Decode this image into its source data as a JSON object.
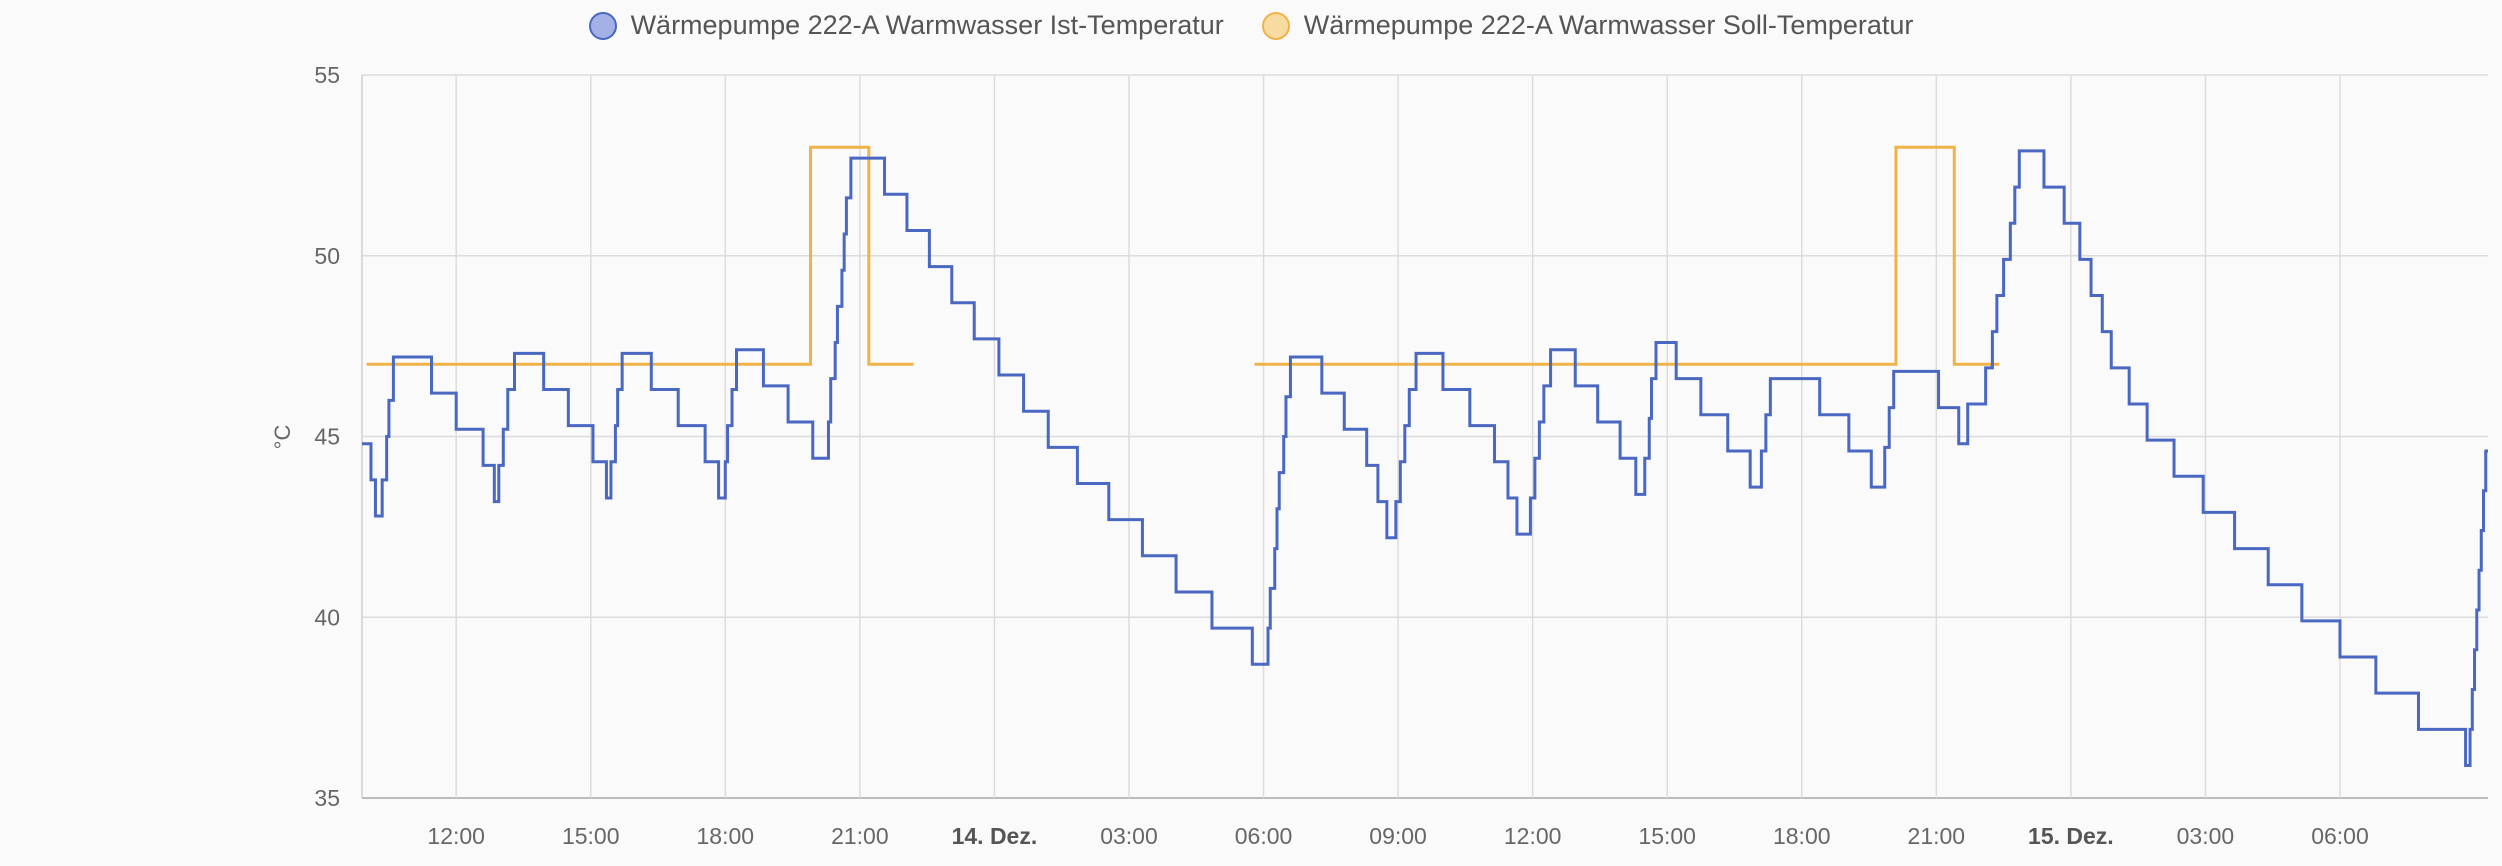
{
  "chart_data": {
    "type": "line",
    "step": true,
    "ylabel": "°C",
    "ylim": [
      35,
      55
    ],
    "yticks": [
      35,
      40,
      45,
      50,
      55
    ],
    "xlim": [
      9.9,
      57.3
    ],
    "xticks": [
      {
        "x": 12,
        "label": "12:00",
        "bold": false
      },
      {
        "x": 15,
        "label": "15:00",
        "bold": false
      },
      {
        "x": 18,
        "label": "18:00",
        "bold": false
      },
      {
        "x": 21,
        "label": "21:00",
        "bold": false
      },
      {
        "x": 24,
        "label": "14. Dez.",
        "bold": true
      },
      {
        "x": 27,
        "label": "03:00",
        "bold": false
      },
      {
        "x": 30,
        "label": "06:00",
        "bold": false
      },
      {
        "x": 33,
        "label": "09:00",
        "bold": false
      },
      {
        "x": 36,
        "label": "12:00",
        "bold": false
      },
      {
        "x": 39,
        "label": "15:00",
        "bold": false
      },
      {
        "x": 42,
        "label": "18:00",
        "bold": false
      },
      {
        "x": 45,
        "label": "21:00",
        "bold": false
      },
      {
        "x": 48,
        "label": "15. Dez.",
        "bold": true
      },
      {
        "x": 51,
        "label": "03:00",
        "bold": false
      },
      {
        "x": 54,
        "label": "06:00",
        "bold": false
      }
    ],
    "grid": true,
    "legend_position": "top-center",
    "series": [
      {
        "name": "Wärmepumpe 222-A Warmwasser Ist-Temperatur",
        "color": "#4a67c2",
        "fill": "#a3b1e6",
        "points": [
          [
            9.9,
            44.8
          ],
          [
            10.1,
            43.8
          ],
          [
            10.2,
            42.8
          ],
          [
            10.35,
            43.8
          ],
          [
            10.45,
            45
          ],
          [
            10.5,
            46
          ],
          [
            10.6,
            47.2
          ],
          [
            11.45,
            46.2
          ],
          [
            12,
            45.2
          ],
          [
            12.6,
            44.2
          ],
          [
            12.85,
            43.2
          ],
          [
            12.95,
            44.2
          ],
          [
            13.05,
            45.2
          ],
          [
            13.15,
            46.3
          ],
          [
            13.3,
            47.3
          ],
          [
            13.95,
            46.3
          ],
          [
            14.5,
            45.3
          ],
          [
            15.05,
            44.3
          ],
          [
            15.35,
            43.3
          ],
          [
            15.45,
            44.3
          ],
          [
            15.55,
            45.3
          ],
          [
            15.6,
            46.3
          ],
          [
            15.7,
            47.3
          ],
          [
            16.35,
            46.3
          ],
          [
            16.95,
            45.3
          ],
          [
            17.55,
            44.3
          ],
          [
            17.85,
            43.3
          ],
          [
            18,
            44.3
          ],
          [
            18.05,
            45.3
          ],
          [
            18.15,
            46.3
          ],
          [
            18.25,
            47.4
          ],
          [
            18.85,
            46.4
          ],
          [
            19.4,
            45.4
          ],
          [
            19.95,
            44.4
          ],
          [
            20.3,
            45.4
          ],
          [
            20.35,
            46.6
          ],
          [
            20.45,
            47.6
          ],
          [
            20.5,
            48.6
          ],
          [
            20.6,
            49.6
          ],
          [
            20.65,
            50.6
          ],
          [
            20.7,
            51.6
          ],
          [
            20.8,
            52.7
          ],
          [
            21.55,
            51.7
          ],
          [
            22.05,
            50.7
          ],
          [
            22.55,
            49.7
          ],
          [
            23.05,
            48.7
          ],
          [
            23.55,
            47.7
          ],
          [
            24.1,
            46.7
          ],
          [
            24.65,
            45.7
          ],
          [
            25.2,
            44.7
          ],
          [
            25.85,
            43.7
          ],
          [
            26.55,
            42.7
          ],
          [
            27.3,
            41.7
          ],
          [
            28.05,
            40.7
          ],
          [
            28.85,
            39.7
          ],
          [
            29.75,
            38.7
          ],
          [
            30.1,
            39.7
          ],
          [
            30.15,
            40.8
          ],
          [
            30.25,
            41.9
          ],
          [
            30.3,
            43
          ],
          [
            30.35,
            44
          ],
          [
            30.45,
            45
          ],
          [
            30.5,
            46.1
          ],
          [
            30.6,
            47.2
          ],
          [
            31.3,
            46.2
          ],
          [
            31.8,
            45.2
          ],
          [
            32.3,
            44.2
          ],
          [
            32.55,
            43.2
          ],
          [
            32.75,
            42.2
          ],
          [
            32.95,
            43.2
          ],
          [
            33.05,
            44.3
          ],
          [
            33.15,
            45.3
          ],
          [
            33.25,
            46.3
          ],
          [
            33.4,
            47.3
          ],
          [
            34,
            46.3
          ],
          [
            34.6,
            45.3
          ],
          [
            35.15,
            44.3
          ],
          [
            35.45,
            43.3
          ],
          [
            35.65,
            42.3
          ],
          [
            35.95,
            43.3
          ],
          [
            36.05,
            44.4
          ],
          [
            36.15,
            45.4
          ],
          [
            36.25,
            46.4
          ],
          [
            36.4,
            47.4
          ],
          [
            36.95,
            46.4
          ],
          [
            37.45,
            45.4
          ],
          [
            37.95,
            44.4
          ],
          [
            38.3,
            43.4
          ],
          [
            38.5,
            44.4
          ],
          [
            38.6,
            45.5
          ],
          [
            38.65,
            46.6
          ],
          [
            38.75,
            47.6
          ],
          [
            39.2,
            46.6
          ],
          [
            39.75,
            45.6
          ],
          [
            40.35,
            44.6
          ],
          [
            40.85,
            43.6
          ],
          [
            41.1,
            44.6
          ],
          [
            41.2,
            45.6
          ],
          [
            41.3,
            46.6
          ],
          [
            42.4,
            45.6
          ],
          [
            43.05,
            44.6
          ],
          [
            43.55,
            43.6
          ],
          [
            43.85,
            44.7
          ],
          [
            43.95,
            45.8
          ],
          [
            44.05,
            46.8
          ],
          [
            45.05,
            45.8
          ],
          [
            45.5,
            44.8
          ],
          [
            45.7,
            45.9
          ],
          [
            46.1,
            46.9
          ],
          [
            46.25,
            47.9
          ],
          [
            46.35,
            48.9
          ],
          [
            46.5,
            49.9
          ],
          [
            46.65,
            50.9
          ],
          [
            46.75,
            51.9
          ],
          [
            46.85,
            52.9
          ],
          [
            47.4,
            51.9
          ],
          [
            47.85,
            50.9
          ],
          [
            48.2,
            49.9
          ],
          [
            48.45,
            48.9
          ],
          [
            48.7,
            47.9
          ],
          [
            48.9,
            46.9
          ],
          [
            49.3,
            45.9
          ],
          [
            49.7,
            44.9
          ],
          [
            50.3,
            43.9
          ],
          [
            50.95,
            42.9
          ],
          [
            51.65,
            41.9
          ],
          [
            52.4,
            40.9
          ],
          [
            53.15,
            39.9
          ],
          [
            54,
            38.9
          ],
          [
            54.8,
            37.9
          ],
          [
            55.75,
            36.9
          ],
          [
            56.8,
            35.9
          ],
          [
            56.9,
            36.9
          ],
          [
            56.95,
            38
          ],
          [
            57,
            39.1
          ],
          [
            57.05,
            40.2
          ],
          [
            57.1,
            41.3
          ],
          [
            57.15,
            42.4
          ],
          [
            57.2,
            43.5
          ],
          [
            57.25,
            44.6
          ]
        ]
      },
      {
        "name": "Wärmepumpe 222-A Warmwasser Soll-Temperatur",
        "color": "#f0b347",
        "fill": "#f7dba0",
        "segments": [
          [
            [
              10.0,
              47
            ],
            [
              19.9,
              47
            ],
            [
              19.9,
              53
            ],
            [
              21.2,
              53
            ],
            [
              21.2,
              47
            ],
            [
              22.2,
              47
            ]
          ],
          [
            [
              29.8,
              47
            ],
            [
              44.1,
              47
            ],
            [
              44.1,
              53
            ],
            [
              45.4,
              53
            ],
            [
              45.4,
              47
            ],
            [
              46.4,
              47
            ]
          ]
        ]
      }
    ]
  }
}
